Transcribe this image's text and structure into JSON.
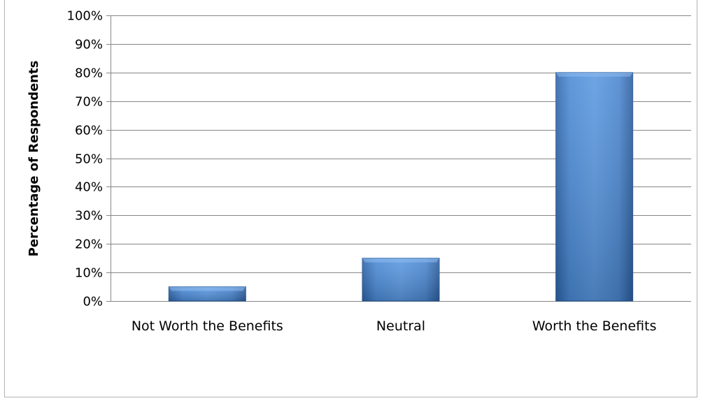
{
  "chart_data": {
    "type": "bar",
    "title": "",
    "xlabel": "",
    "ylabel": "Percentage of Respondents",
    "categories": [
      "Not Worth the Benefits",
      "Neutral",
      "Worth the Benefits"
    ],
    "values": [
      0.05,
      0.15,
      0.8
    ],
    "ylim": [
      0,
      1
    ],
    "yticks": [
      "0%",
      "10%",
      "20%",
      "30%",
      "40%",
      "50%",
      "60%",
      "70%",
      "80%",
      "90%",
      "100%"
    ],
    "grid": true,
    "legend": "none",
    "colors": {
      "bar": "#4a86cf",
      "bar_dark": "#2f5f9e",
      "gridline": "#868686",
      "axis": "#868686"
    }
  }
}
